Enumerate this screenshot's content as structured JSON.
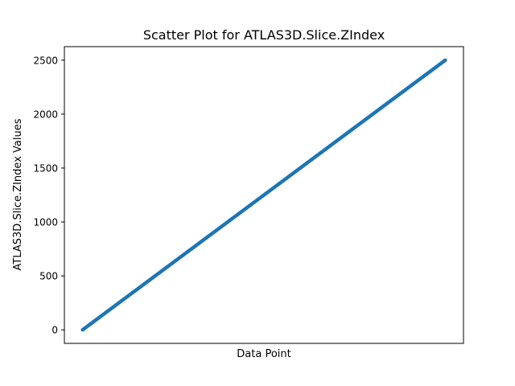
{
  "chart_data": {
    "type": "scatter",
    "title": "Scatter Plot for ATLAS3D.Slice.ZIndex",
    "xlabel": "Data Point",
    "ylabel": "ATLAS3D.Slice.ZIndex Values",
    "x_ticks_visible": false,
    "xlim": [
      -125,
      2625
    ],
    "ylim": [
      -125,
      2625
    ],
    "y_ticks": [
      0,
      500,
      1000,
      1500,
      2000,
      2500
    ],
    "y_tick_labels": [
      "0",
      "500",
      "1000",
      "1500",
      "2000",
      "2500"
    ],
    "grid": false,
    "legend": "none",
    "marker_color": "#1f77b4",
    "series": [
      {
        "x_range": [
          0,
          2500
        ],
        "y_equals_x": true,
        "count": 2501
      }
    ]
  }
}
